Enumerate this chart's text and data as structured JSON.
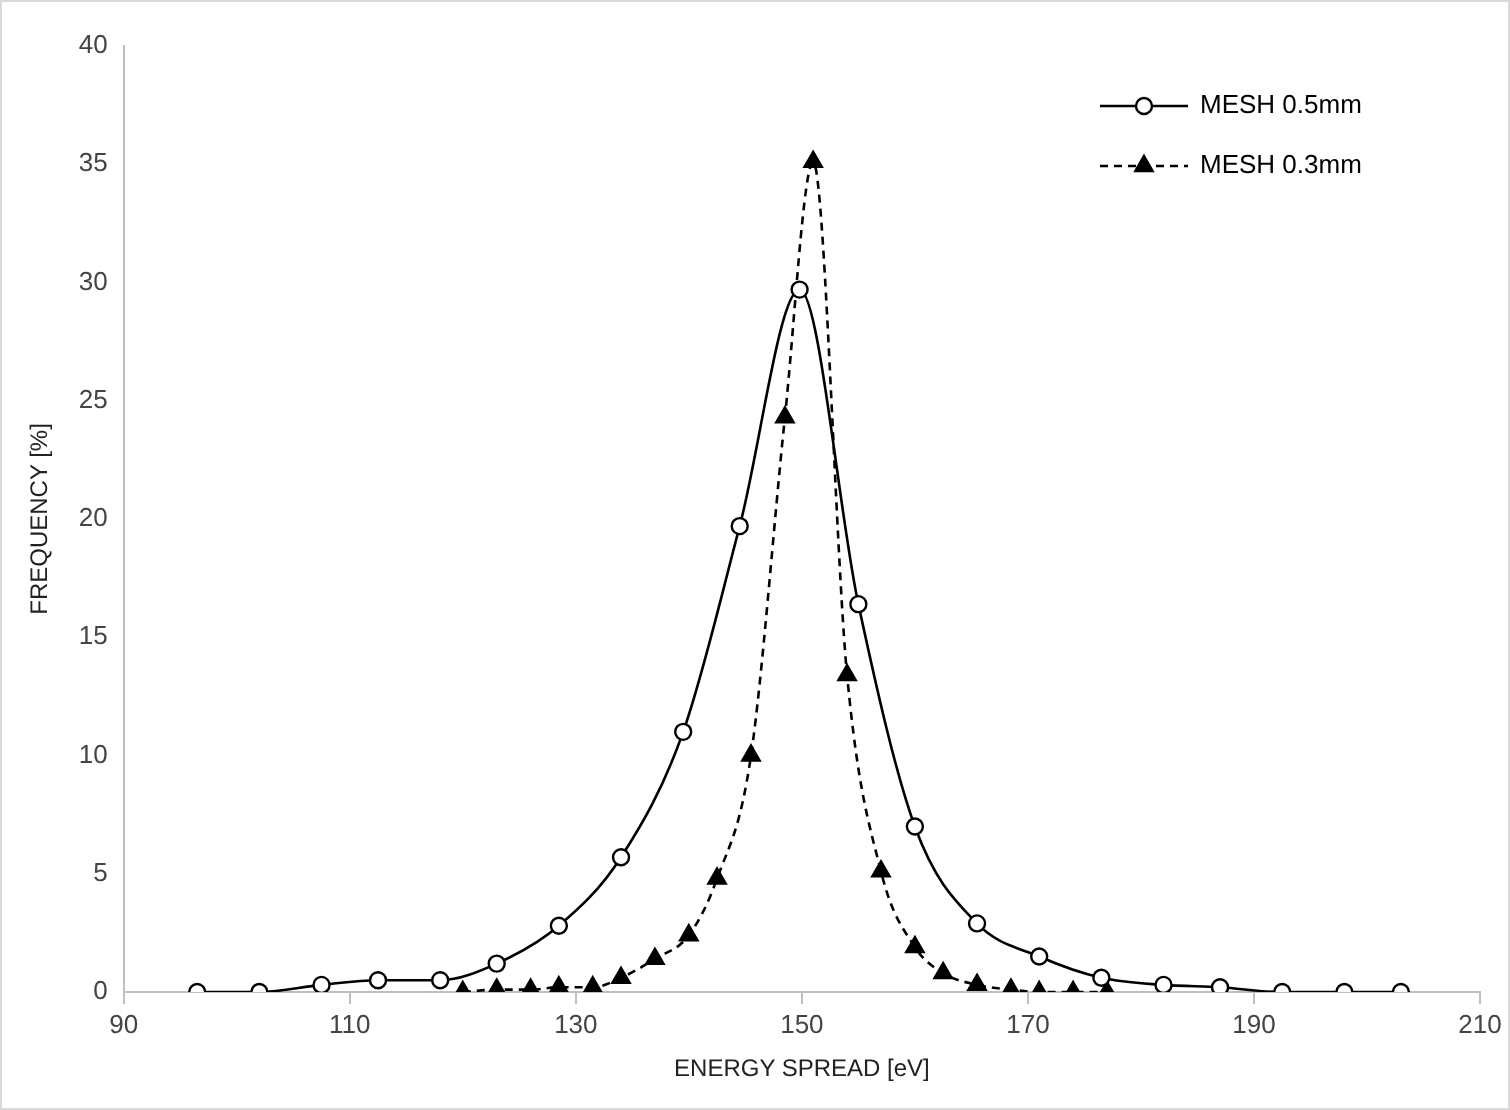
{
  "chart_data": {
    "type": "line",
    "xlabel": "ENERGY SPREAD [eV]",
    "ylabel": "FREQUENCY [%]",
    "xlim": [
      90,
      210
    ],
    "xticks": [
      90,
      110,
      130,
      150,
      170,
      190,
      210
    ],
    "ylim": [
      0,
      40
    ],
    "yticks": [
      0,
      5,
      10,
      15,
      20,
      25,
      30,
      35,
      40
    ],
    "grid": false,
    "legend": "top right",
    "series": [
      {
        "name": "MESH 0.5mm",
        "color": "#000000",
        "marker": "circle",
        "line_style": "solid",
        "x": [
          96.5,
          102,
          107.5,
          112.5,
          118,
          123,
          128.5,
          134,
          139.5,
          144.5,
          149.8,
          155,
          160,
          165.5,
          171,
          176.5,
          182,
          187,
          192.5,
          198,
          203
        ],
        "values": [
          0,
          0,
          0.3,
          0.5,
          0.5,
          1.2,
          2.8,
          5.7,
          11,
          19.7,
          29.7,
          16.4,
          7,
          2.9,
          1.5,
          0.6,
          0.3,
          0.2,
          0,
          0,
          0
        ]
      },
      {
        "name": "MESH 0.3mm",
        "color": "#000000",
        "marker": "triangle",
        "line_style": "dashed",
        "x": [
          120,
          123,
          126,
          128.5,
          131.5,
          134,
          137,
          140,
          142.5,
          145.5,
          148.5,
          151,
          154,
          157,
          160,
          162.5,
          165.5,
          168.5,
          171,
          174,
          177
        ],
        "values": [
          0,
          0.1,
          0.1,
          0.2,
          0.2,
          0.6,
          1.4,
          2.4,
          4.8,
          10,
          24.3,
          35.1,
          13.4,
          5.1,
          1.9,
          0.8,
          0.3,
          0.1,
          0,
          0,
          0
        ]
      }
    ]
  }
}
